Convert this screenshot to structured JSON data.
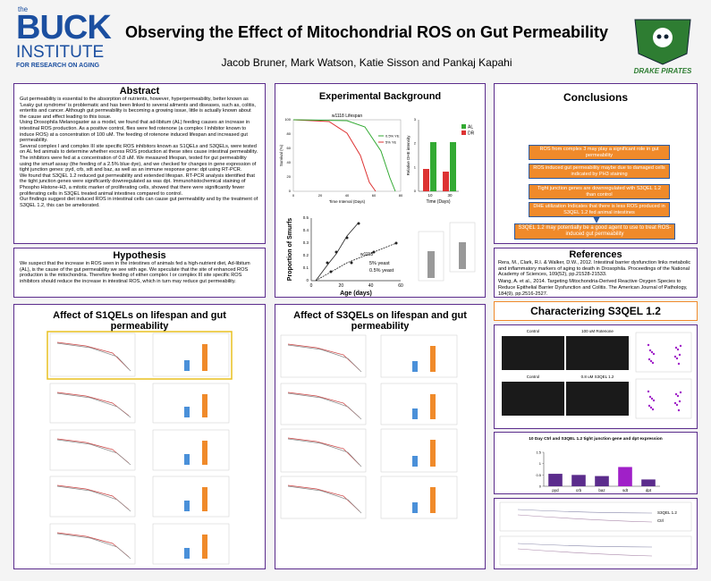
{
  "header": {
    "logo_top": "the",
    "logo_main": "BUCK",
    "logo_sub": "INSTITUTE",
    "logo_tagline": "FOR RESEARCH ON AGING",
    "title": "Observing the Effect of Mitochondrial ROS on Gut Permeability",
    "authors": "Jacob Bruner, Mark Watson, Katie Sisson and Pankaj Kapahi",
    "right_logo": "DRAKE PIRATES"
  },
  "abstract": {
    "title": "Abstract",
    "paragraphs": [
      "Gut permeability is essential to the absorption of nutrients, however, hyperpermeability, better known as 'Leaky gut syndrome' is problematic and has been linked to several ailments and diseases, such as, colitis, enteritis and cancer. Although gut permeability is becoming a growing issue, little is actually known about the cause and effect leading to this issue.",
      "Using Drosophila Melanogaster as a model, we found that ad-libitum (AL) feeding causes an increase in intestinal ROS production. As a positive control, flies were fed rotenone (a complex I inhibitor known to induce ROS) at a concentration of 100 uM. The feeding of rotenone induced lifespan and increased gut permeability.",
      "Several complex I and complex III site specific ROS inhibitors known as S1QELs and S3QELs, were tested on AL fed animals to determine whether excess ROS production at these sites cause intestinal permeability. The inhibitors were fed at a concentration of 0.8 uM. We measured lifespan, tested for gut permeability using the smurf assay (the feeding of a 2.5% blue dye), and we checked for changes in gene expression of tight junction genes: pyd, crb, sdt and baz, as well as an immune response gene: dpt using RT-PCR.",
      "We found that S3QEL 1.2 reduced gut permeability and extended lifespan. RT-PCR analysis identified that the tight junction genes were significantly downregulated as was dpt. Immunohistochemical staining of Phospho Histone-H3, a mitotic marker of proliferating cells, showed that there were significantly fewer proliferating cells in S3QEL treated animal intestines compared to control.",
      "Our findings suggest diet induced ROS in intestinal cells can cause gut permeability and by the treatment of S3QEL 1.2, this can be ameliorated."
    ]
  },
  "hypothesis": {
    "title": "Hypothesis",
    "text": "We suspect that the increase in ROS seen in the intestines of animals fed a high-nutrient diet, Ad-libitum (AL), is the cause of the gut permeability we see with age. We speculate that the site of enhanced ROS production is the mitochondria. Therefore feeding of either complex I or complex III site specific ROS inhibitors should reduce the increase in intestinal ROS, which in turn may reduce gut permeability."
  },
  "background": {
    "title": "Experimental Background",
    "lifespan": {
      "title": "w1118 Lifespan",
      "xlabel": "Time Interval (Days)",
      "ylabel": "Survival (%)",
      "xticks": [
        "0",
        "20",
        "40",
        "60",
        "80"
      ],
      "yticks": [
        "0",
        "20",
        "40",
        "60",
        "80",
        "100"
      ],
      "legend": [
        "0.5% YE",
        "5% YE"
      ]
    },
    "dhe": {
      "xlabel": "Time (Days)",
      "ylabel": "Relative DHE intensity",
      "xticks": [
        "10",
        "30"
      ],
      "yticks": [
        "0",
        "1",
        "2",
        "3"
      ],
      "legend": [
        "AL",
        "DR"
      ]
    },
    "smurf": {
      "xlabel": "Age (days)",
      "ylabel": "Proportion of Smurfs",
      "xticks": [
        "0",
        "20",
        "40",
        "60"
      ],
      "yticks": [
        "0",
        "0.1",
        "0.2",
        "0.3",
        "0.4",
        "0.5"
      ],
      "strain": "w1118",
      "legend": [
        "5% yeast",
        "0.5% yeast"
      ]
    }
  },
  "conclusions": {
    "title": "Conclusions",
    "items": [
      "ROS from complex 3 may play a significant role in gut permeability",
      "ROS induced gut permeability maybe due to damaged cells indicated by PH3 staining",
      "Tight junction genes are downregulated with S3QEL 1.2 than control",
      "DHE utilization Indicates that there is less ROS produced in S3QEL 1.2 fed animal intestines"
    ],
    "final": "S3QEL 1.2 may potentially be a good agent to use to treat ROS-induced gut permeability"
  },
  "references": {
    "title": "References",
    "items": [
      "Rera, M., Clark, R.I. & Walker, D.W., 2012. Intestinal barrier dysfunction links metabolic and inflammatory markers of aging to death in Drosophila. Proceedings of the National Academy of Sciences, 109(52), pp.21528-21533.",
      "Wang, A. et al., 2014. Targeting Mitochondria-Derived Reactive Oxygen Species to Reduce Epithelial Barrier Dysfunction and Colitis. The American Journal of Pathology, 184(9), pp.2516-2527."
    ]
  },
  "s1qel": {
    "title": "Affect of S1QELs on lifespan and gut permeability"
  },
  "s3qel": {
    "title": "Affect of S3QELs on lifespan and gut permeability"
  },
  "characterizing": {
    "title": "Characterizing S3QEL 1.2",
    "image_labels": [
      "Control",
      "100 uM Rotenone",
      "Control",
      "0.8 uM S3QEL 1.2"
    ],
    "gene_chart": {
      "type": "bar",
      "title": "10 Day Ctrl and S3QEL 1.2 tight junction gene and dpt expression",
      "categories": [
        "pyd",
        "crb",
        "baz",
        "sdt",
        "dpt"
      ],
      "values": [
        0.55,
        0.5,
        0.45,
        0.85,
        0.3
      ],
      "colors": [
        "#5b2c8c",
        "#5b2c8c",
        "#5b2c8c",
        "#a020c8",
        "#5b2c8c"
      ],
      "ylim": [
        0,
        1.5
      ],
      "yticks": [
        0,
        0.5,
        1,
        1.5
      ]
    },
    "line_labels": [
      "S3QEL 1.2",
      "Ctrl"
    ]
  }
}
